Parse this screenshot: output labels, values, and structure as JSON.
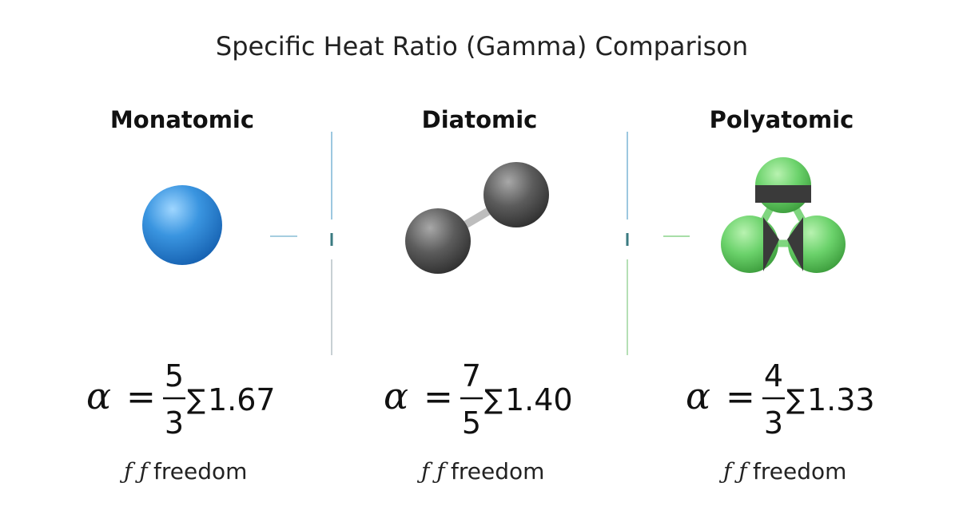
{
  "header": {
    "title": "Specific Heat Ratio (Gamma) Comparison"
  },
  "columns": [
    {
      "name": "Monatomic",
      "symbol": "α",
      "equals": "=",
      "numerator": "5",
      "denominator": "3",
      "sigma": "∑",
      "value": "1.67",
      "note_symbol": "ƒ ƒ",
      "note": "freedom"
    },
    {
      "name": "Diatomic",
      "symbol": "α",
      "equals": "=",
      "numerator": "7",
      "denominator": "5",
      "sigma": "∑",
      "value": "1.40",
      "note_symbol": "ƒ ƒ",
      "note": "freedom"
    },
    {
      "name": "Polyatomic",
      "symbol": "α",
      "equals": "=",
      "numerator": "4",
      "denominator": "3",
      "sigma": "∑",
      "value": "1.33",
      "note_symbol": "ƒ ƒ",
      "note": "freedom"
    }
  ]
}
